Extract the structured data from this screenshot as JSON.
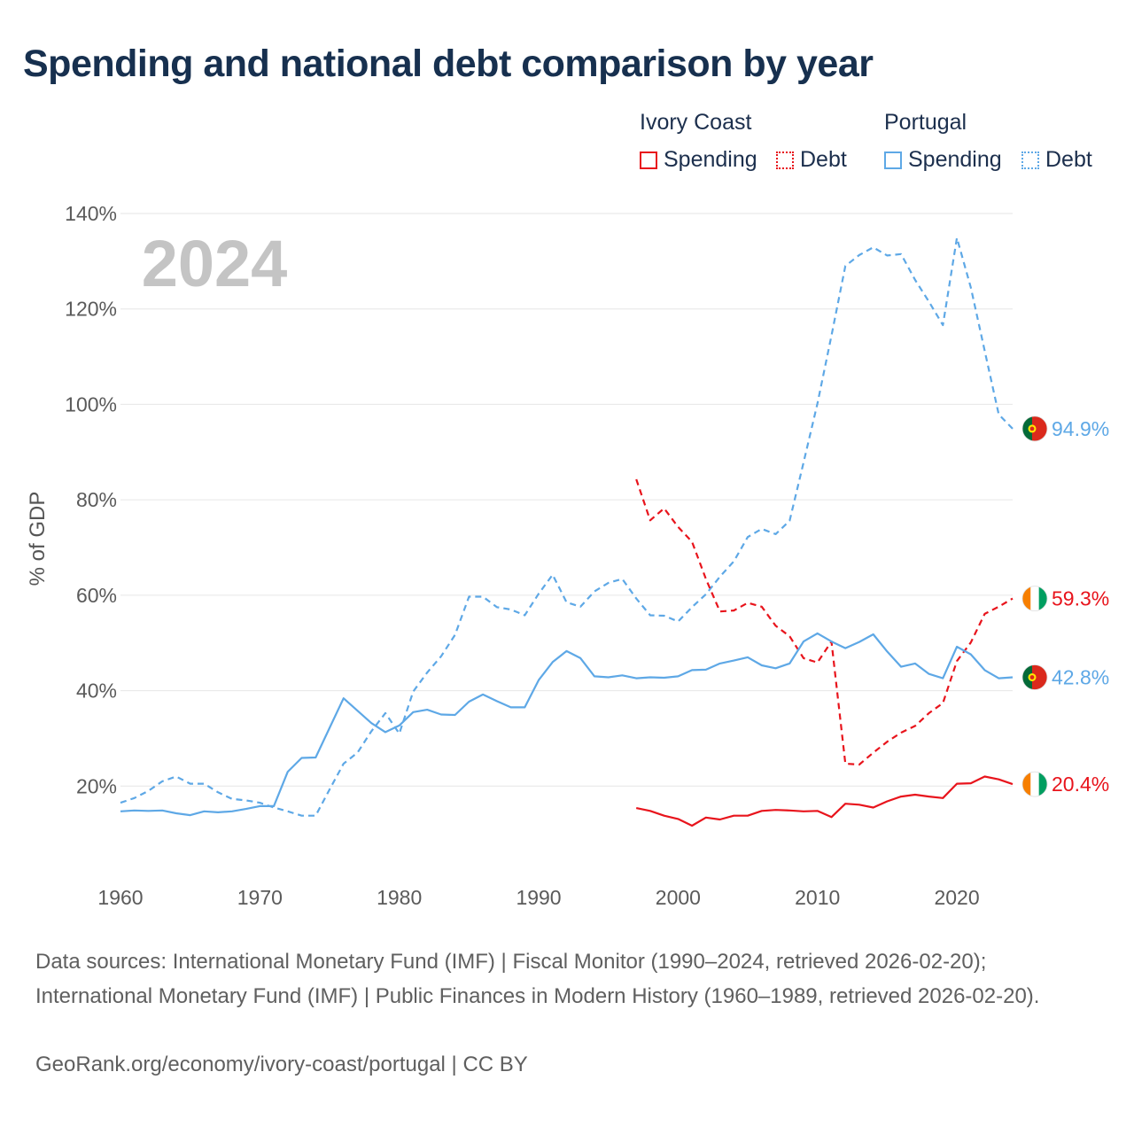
{
  "title": "Spending and national debt comparison by year",
  "legend": {
    "groups": [
      {
        "country": "Ivory Coast",
        "items": [
          {
            "label": "Spending",
            "style": "solid"
          },
          {
            "label": "Debt",
            "style": "dashed"
          }
        ],
        "color": "#e8141c"
      },
      {
        "country": "Portugal",
        "items": [
          {
            "label": "Spending",
            "style": "solid"
          },
          {
            "label": "Debt",
            "style": "dashed"
          }
        ],
        "color": "#5ea8e6"
      }
    ]
  },
  "chart_data": {
    "type": "line",
    "title": "Spending and national debt comparison by year",
    "ylabel": "% of GDP",
    "xlabel": "",
    "year_watermark": "2024",
    "xlim": [
      1960,
      2024
    ],
    "ylim": [
      0,
      140
    ],
    "x_ticks": [
      1960,
      1970,
      1980,
      1990,
      2000,
      2010,
      2020
    ],
    "y_ticks": [
      20,
      40,
      60,
      80,
      100,
      120,
      140
    ],
    "y_tick_labels": [
      "20%",
      "40%",
      "60%",
      "80%",
      "100%",
      "120%",
      "140%"
    ],
    "grid": true,
    "series": [
      {
        "name": "Portugal Debt",
        "country": "Portugal",
        "metric": "Debt",
        "style": "dashed",
        "color": "#5ea8e6",
        "end_label": "94.9%",
        "flag": "portugal",
        "x": [
          1960,
          1961,
          1962,
          1963,
          1964,
          1965,
          1966,
          1967,
          1968,
          1969,
          1970,
          1971,
          1972,
          1973,
          1974,
          1975,
          1976,
          1977,
          1978,
          1979,
          1980,
          1981,
          1982,
          1983,
          1984,
          1985,
          1986,
          1987,
          1988,
          1989,
          1990,
          1991,
          1992,
          1993,
          1994,
          1995,
          1996,
          1997,
          1998,
          1999,
          2000,
          2001,
          2002,
          2003,
          2004,
          2005,
          2006,
          2007,
          2008,
          2009,
          2010,
          2011,
          2012,
          2013,
          2014,
          2015,
          2016,
          2017,
          2018,
          2019,
          2020,
          2021,
          2022,
          2023,
          2024
        ],
        "values": [
          16.5,
          17.5,
          19,
          21,
          22,
          20.5,
          20.5,
          18.7,
          17.3,
          17,
          16.5,
          15.5,
          14.7,
          13.8,
          13.8,
          19.3,
          24.7,
          27,
          31.5,
          35.3,
          31,
          39.8,
          43.8,
          47.2,
          51.7,
          59.7,
          59.7,
          57.5,
          57,
          55.8,
          60.3,
          64.3,
          58.5,
          57.6,
          60.8,
          62.6,
          63.4,
          59.3,
          55.8,
          55.7,
          54.5,
          57.5,
          60.2,
          63.9,
          67.1,
          72.2,
          73.9,
          72.8,
          75.6,
          87.8,
          100.2,
          114.4,
          129,
          131.3,
          132.9,
          131.2,
          131.5,
          126.1,
          121.5,
          116.6,
          134.9,
          124.5,
          111.2,
          97.9,
          94.9
        ]
      },
      {
        "name": "Ivory Coast Debt",
        "country": "Ivory Coast",
        "metric": "Debt",
        "style": "dashed",
        "color": "#e8141c",
        "end_label": "59.3%",
        "flag": "ivory-coast",
        "x": [
          1997,
          1998,
          1999,
          2000,
          2001,
          2002,
          2003,
          2004,
          2005,
          2006,
          2007,
          2008,
          2009,
          2010,
          2011,
          2012,
          2013,
          2014,
          2015,
          2016,
          2017,
          2018,
          2019,
          2020,
          2021,
          2022,
          2023,
          2024
        ],
        "values": [
          84.3,
          75.7,
          78.2,
          74.3,
          71.2,
          63.4,
          56.6,
          56.8,
          58.4,
          57.6,
          53.6,
          51.4,
          46.8,
          45.9,
          50.3,
          24.7,
          24.5,
          27,
          29.3,
          31.2,
          32.6,
          35.3,
          37.4,
          46.2,
          50.1,
          56.1,
          57.6,
          59.3
        ]
      },
      {
        "name": "Portugal Spending",
        "country": "Portugal",
        "metric": "Spending",
        "style": "solid",
        "color": "#5ea8e6",
        "end_label": "42.8%",
        "flag": "portugal",
        "x": [
          1960,
          1961,
          1962,
          1963,
          1964,
          1965,
          1966,
          1967,
          1968,
          1969,
          1970,
          1971,
          1972,
          1973,
          1974,
          1975,
          1976,
          1977,
          1978,
          1979,
          1980,
          1981,
          1982,
          1983,
          1984,
          1985,
          1986,
          1987,
          1988,
          1989,
          1990,
          1991,
          1992,
          1993,
          1994,
          1995,
          1996,
          1997,
          1998,
          1999,
          2000,
          2001,
          2002,
          2003,
          2004,
          2005,
          2006,
          2007,
          2008,
          2009,
          2010,
          2011,
          2012,
          2013,
          2014,
          2015,
          2016,
          2017,
          2018,
          2019,
          2020,
          2021,
          2022,
          2023,
          2024
        ],
        "values": [
          14.7,
          14.9,
          14.8,
          14.9,
          14.3,
          13.9,
          14.7,
          14.5,
          14.7,
          15.2,
          15.8,
          15.8,
          23,
          25.9,
          26,
          32.2,
          38.4,
          35.8,
          33.2,
          31.3,
          32.7,
          35.5,
          36,
          35,
          34.9,
          37.7,
          39.2,
          37.8,
          36.5,
          36.5,
          42.2,
          46,
          48.3,
          46.8,
          43,
          42.8,
          43.2,
          42.6,
          42.8,
          42.7,
          43,
          44.3,
          44.4,
          45.7,
          46.3,
          47,
          45.3,
          44.7,
          45.7,
          50.3,
          52,
          50.3,
          48.9,
          50.2,
          51.8,
          48.2,
          45,
          45.7,
          43.5,
          42.6,
          49.2,
          47.6,
          44.3,
          42.6,
          42.8
        ]
      },
      {
        "name": "Ivory Coast Spending",
        "country": "Ivory Coast",
        "metric": "Spending",
        "style": "solid",
        "color": "#e8141c",
        "end_label": "20.4%",
        "flag": "ivory-coast",
        "x": [
          1997,
          1998,
          1999,
          2000,
          2001,
          2002,
          2003,
          2004,
          2005,
          2006,
          2007,
          2008,
          2009,
          2010,
          2011,
          2012,
          2013,
          2014,
          2015,
          2016,
          2017,
          2018,
          2019,
          2020,
          2021,
          2022,
          2023,
          2024
        ],
        "values": [
          15.4,
          14.8,
          13.8,
          13.1,
          11.7,
          13.4,
          13,
          13.8,
          13.8,
          14.8,
          15,
          14.9,
          14.7,
          14.8,
          13.5,
          16.3,
          16.1,
          15.5,
          16.8,
          17.8,
          18.2,
          17.8,
          17.5,
          20.5,
          20.6,
          22,
          21.4,
          20.4
        ]
      }
    ]
  },
  "footer": {
    "sources": "Data sources: International Monetary Fund (IMF) | Fiscal Monitor (1990–2024, retrieved 2026-02-20); International Monetary Fund (IMF) | Public Finances in Modern History (1960–1989, retrieved 2026-02-20).",
    "attribution": "GeoRank.org/economy/ivory-coast/portugal | CC BY"
  }
}
